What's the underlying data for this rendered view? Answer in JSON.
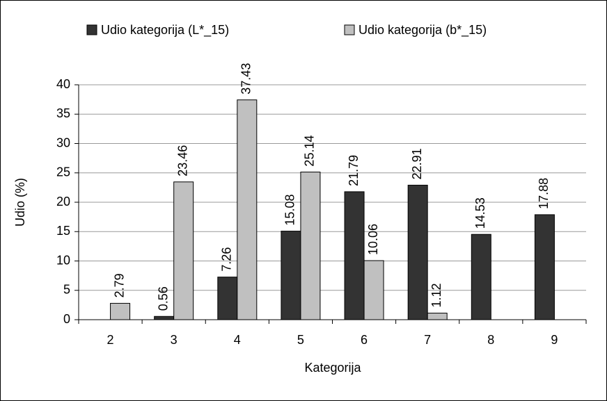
{
  "chart_data": {
    "type": "bar",
    "x_label": "Kategorija",
    "y_label": "Udio (%)",
    "categories": [
      "2",
      "3",
      "4",
      "5",
      "6",
      "7",
      "8",
      "9"
    ],
    "series": [
      {
        "name": "Udio kategorija (L*_15)",
        "color": "#333333",
        "values": [
          null,
          0.56,
          7.26,
          15.08,
          21.79,
          22.91,
          14.53,
          17.88
        ]
      },
      {
        "name": "Udio kategorija (b*_15)",
        "color": "#c0c0c0",
        "values": [
          2.79,
          23.46,
          37.43,
          25.14,
          10.06,
          1.12,
          null,
          null
        ]
      }
    ],
    "ylim": [
      0,
      40
    ],
    "yticks": [
      0,
      5,
      10,
      15,
      20,
      25,
      30,
      35,
      40
    ],
    "grid": true,
    "legend": "top"
  }
}
